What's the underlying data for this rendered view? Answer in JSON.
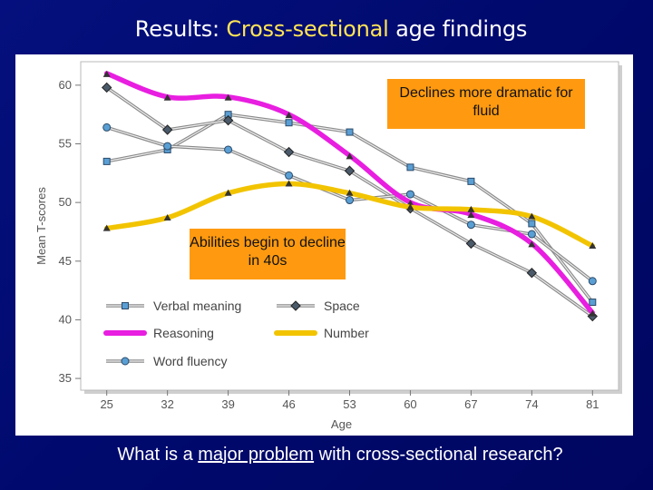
{
  "slide": {
    "title_prefix": "Results: ",
    "title_highlight": "Cross-sectional",
    "title_suffix": " age findings",
    "question_prefix": "What is a ",
    "question_underlined": "major problem",
    "question_suffix": " with cross-sectional research?"
  },
  "callouts": {
    "fluid": "Declines more dramatic for fluid",
    "age": "Abilities begin to decline in 40s"
  },
  "colors": {
    "background": "#000a6e",
    "title_highlight": "#ffe455",
    "callout": "#ff9a10",
    "reasoning": "#e81ee0",
    "number": "#f2c400",
    "verbal": "#5a9fd4",
    "space": "#4a5a6a",
    "word_fluency": "#5a9fd4"
  },
  "chart_data": {
    "type": "line",
    "title": "",
    "xlabel": "Age",
    "ylabel": "Mean T-scores",
    "categories": [
      "25",
      "32",
      "39",
      "46",
      "53",
      "60",
      "67",
      "74",
      "81"
    ],
    "x": [
      25,
      32,
      39,
      46,
      53,
      60,
      67,
      74,
      81
    ],
    "ylim": [
      34,
      62
    ],
    "yticks": [
      35,
      40,
      45,
      50,
      55,
      60
    ],
    "grid": false,
    "legend_position": "bottom-left",
    "series": [
      {
        "name": "Verbal meaning",
        "values": [
          53.5,
          54.5,
          57.5,
          56.8,
          56,
          53,
          51.8,
          48.2,
          41.5
        ],
        "style": "thin",
        "color_key": "verbal",
        "marker": "square"
      },
      {
        "name": "Space",
        "values": [
          59.8,
          56.2,
          57,
          54.3,
          52.7,
          49.5,
          46.5,
          44,
          40.3
        ],
        "style": "thin",
        "color_key": "space",
        "marker": "diamond"
      },
      {
        "name": "Reasoning",
        "values": [
          61,
          59,
          59,
          57.5,
          54,
          50,
          49,
          46.5,
          40.6
        ],
        "style": "highlight",
        "color_key": "reasoning",
        "marker": "none"
      },
      {
        "name": "Number",
        "values": [
          47.8,
          48.7,
          50.8,
          51.6,
          50.8,
          49.6,
          49.4,
          48.8,
          46.3
        ],
        "style": "highlight",
        "color_key": "number",
        "marker": "none"
      },
      {
        "name": "Word fluency",
        "values": [
          56.4,
          54.8,
          54.5,
          52.3,
          50.2,
          50.7,
          48.1,
          47.3,
          43.3
        ],
        "style": "thin",
        "color_key": "word_fluency",
        "marker": "circle"
      }
    ]
  }
}
